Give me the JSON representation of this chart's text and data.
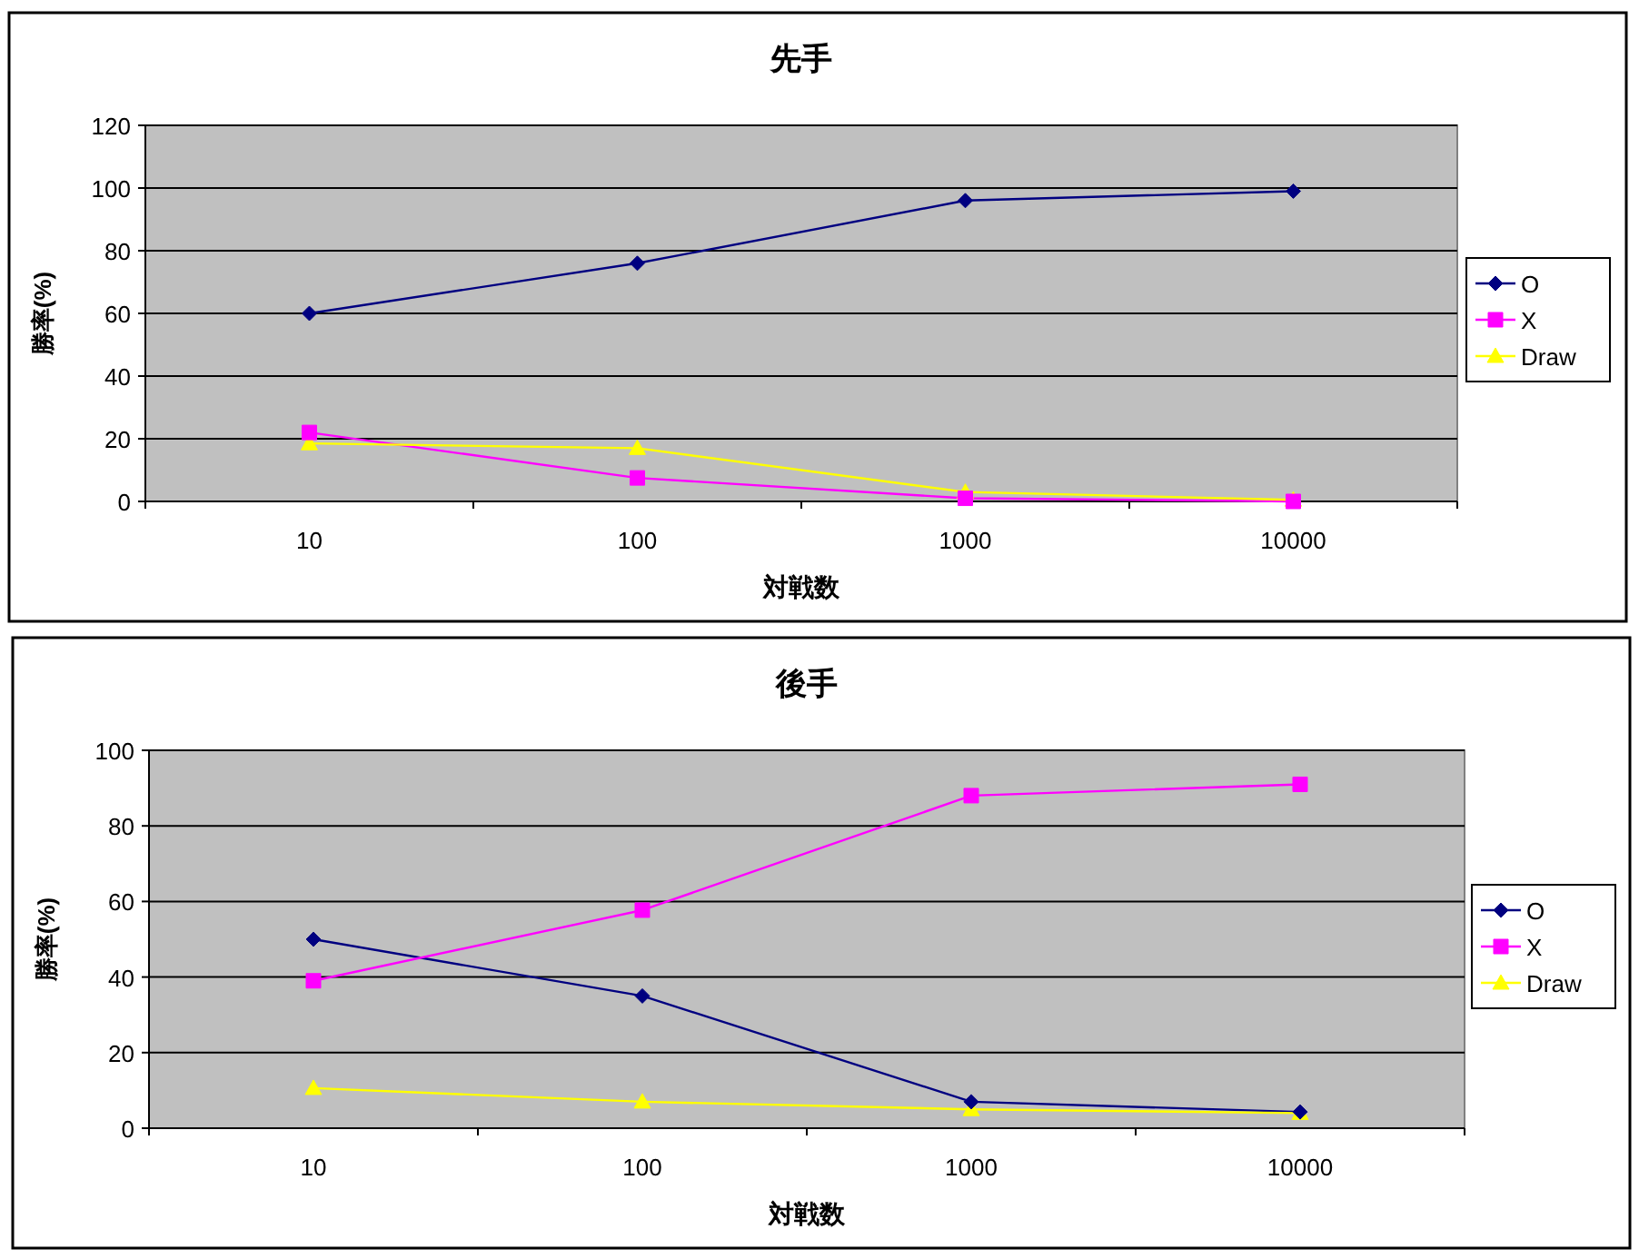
{
  "chart_data": [
    {
      "type": "line",
      "title": "先手",
      "xlabel": "対戦数",
      "ylabel": "勝率(%)",
      "categories": [
        "10",
        "100",
        "1000",
        "10000"
      ],
      "ylim": [
        0,
        120
      ],
      "yticks": [
        0,
        20,
        40,
        60,
        80,
        100,
        120
      ],
      "grid": "y",
      "legend": "right",
      "series": [
        {
          "name": "O",
          "color": "#000080",
          "marker": "diamond",
          "values": [
            60,
            76,
            96,
            99
          ]
        },
        {
          "name": "X",
          "color": "#ff00ff",
          "marker": "square",
          "values": [
            22,
            7.5,
            1,
            0
          ]
        },
        {
          "name": "Draw",
          "color": "#ffff00",
          "marker": "triangle",
          "values": [
            18.5,
            17,
            3,
            0.5
          ]
        }
      ]
    },
    {
      "type": "line",
      "title": "後手",
      "xlabel": "対戦数",
      "ylabel": "勝率(%)",
      "categories": [
        "10",
        "100",
        "1000",
        "10000"
      ],
      "ylim": [
        0,
        100
      ],
      "yticks": [
        0,
        20,
        40,
        60,
        80,
        100
      ],
      "grid": "y",
      "legend": "right",
      "series": [
        {
          "name": "O",
          "color": "#000080",
          "marker": "diamond",
          "values": [
            50,
            35,
            7,
            4.3
          ]
        },
        {
          "name": "X",
          "color": "#ff00ff",
          "marker": "square",
          "values": [
            39,
            57.7,
            88,
            91
          ]
        },
        {
          "name": "Draw",
          "color": "#ffff00",
          "marker": "triangle",
          "values": [
            10.6,
            7,
            5,
            4
          ]
        }
      ]
    }
  ]
}
